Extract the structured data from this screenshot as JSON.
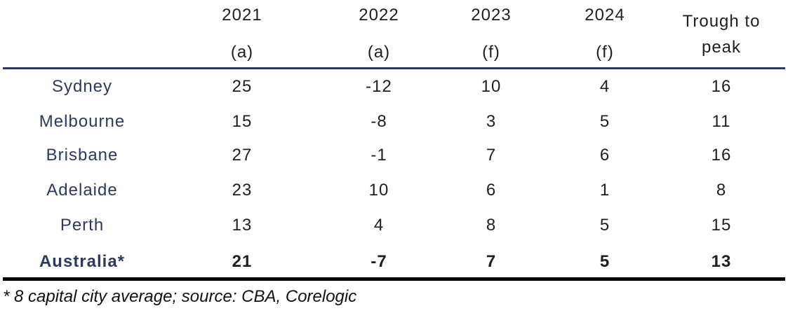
{
  "header": {
    "columns": [
      {
        "year": "2021",
        "note": "(a)"
      },
      {
        "year": "2022",
        "note": "(a)"
      },
      {
        "year": "2023",
        "note": "(f)"
      },
      {
        "year": "2024",
        "note": "(f)"
      },
      {
        "lines": [
          "Trough to",
          "peak"
        ]
      }
    ]
  },
  "table": {
    "rows": [
      {
        "label": "Sydney",
        "values": [
          25,
          -12,
          10,
          4,
          16
        ]
      },
      {
        "label": "Melbourne",
        "values": [
          15,
          -8,
          3,
          5,
          11
        ]
      },
      {
        "label": "Brisbane",
        "values": [
          27,
          -1,
          7,
          6,
          16
        ]
      },
      {
        "label": "Adelaide",
        "values": [
          23,
          10,
          6,
          1,
          8
        ]
      },
      {
        "label": "Perth",
        "values": [
          13,
          4,
          8,
          5,
          15
        ]
      },
      {
        "label": "Australia*",
        "values": [
          21,
          -7,
          7,
          5,
          13
        ],
        "bold": true
      }
    ]
  },
  "footnote": "* 8 capital city average; source: CBA, Corelogic"
}
